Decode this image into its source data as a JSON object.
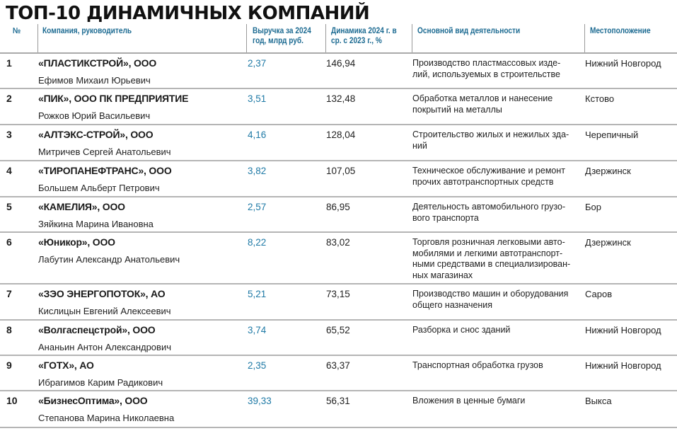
{
  "title": "ТОП-10 ДИНАМИЧНЫХ КОМПАНИЙ",
  "columns": {
    "num": "№",
    "company": "Компания, руководитель",
    "revenue_l1": "Выручка за 2024",
    "revenue_l2": "год, млрд руб.",
    "dynamics_l1": "Динамика 2024 г. в",
    "dynamics_l2": "ср. с 2023 г., %",
    "activity": "Основной вид деятельности",
    "location": "Местоположение"
  },
  "colors": {
    "accent": "#1d6b92",
    "revenue": "#1f7aa6",
    "divider": "#b5b5b5"
  },
  "rows": [
    {
      "num": "1",
      "company": "«ПЛАСТИКСТРОЙ», ООО",
      "head": "Ефимов Михаил Юрьевич",
      "revenue": "2,37",
      "dynamics": "146,94",
      "activity_l1": "Производство пластмассовых изде-",
      "activity_l2": "лий, используемых в строительстве",
      "activity_l3": "",
      "activity_l4": "",
      "location": "Нижний Новгород"
    },
    {
      "num": "2",
      "company": "«ПИК», ООО ПК ПРЕДПРИЯТИЕ",
      "head": "Рожков Юрий Васильевич",
      "revenue": "3,51",
      "dynamics": "132,48",
      "activity_l1": "Обработка металлов и нанесение",
      "activity_l2": "покрытий на металлы",
      "activity_l3": "",
      "activity_l4": "",
      "location": "Кстово"
    },
    {
      "num": "3",
      "company": "«АЛТЭКС-СТРОЙ», ООО",
      "head": "Митричев Сергей Анатольевич",
      "revenue": "4,16",
      "dynamics": "128,04",
      "activity_l1": "Строительство жилых и нежилых зда-",
      "activity_l2": "ний",
      "activity_l3": "",
      "activity_l4": "",
      "location": "Черепичный"
    },
    {
      "num": "4",
      "company": "«ТИРОПАНЕФТРАНС», ООО",
      "head": "Большем Альберт Петрович",
      "revenue": "3,82",
      "dynamics": "107,05",
      "activity_l1": "Техническое обслуживание и ремонт",
      "activity_l2": "прочих автотранспортных средств",
      "activity_l3": "",
      "activity_l4": "",
      "location": "Дзержинск"
    },
    {
      "num": "5",
      "company": "«КАМЕЛИЯ», ООО",
      "head": "Зяйкина Марина Ивановна",
      "revenue": "2,57",
      "dynamics": "86,95",
      "activity_l1": "Деятельность автомобильного грузо-",
      "activity_l2": "вого транспорта",
      "activity_l3": "",
      "activity_l4": "",
      "location": "Бор"
    },
    {
      "num": "6",
      "company": "«Юникор», ООО",
      "head": "Лабутин Александр Анатольевич",
      "revenue": "8,22",
      "dynamics": "83,02",
      "activity_l1": "Торговля розничная легковыми авто-",
      "activity_l2": "мобилями и легкими автотранспорт-",
      "activity_l3": "ными средствами в специализирован-",
      "activity_l4": "ных магазинах",
      "location": "Дзержинск"
    },
    {
      "num": "7",
      "company": "«ЗЭО ЭНЕРГОПОТОК», АО",
      "head": "Кислицын Евгений Алексеевич",
      "revenue": "5,21",
      "dynamics": "73,15",
      "activity_l1": "Производство машин и оборудования",
      "activity_l2": "общего назначения",
      "activity_l3": "",
      "activity_l4": "",
      "location": "Саров"
    },
    {
      "num": "8",
      "company": "«Волгаспецстрой», ООО",
      "head": "Ананьин Антон Александрович",
      "revenue": "3,74",
      "dynamics": "65,52",
      "activity_l1": "Разборка и снос зданий",
      "activity_l2": "",
      "activity_l3": "",
      "activity_l4": "",
      "location": "Нижний Новгород"
    },
    {
      "num": "9",
      "company": "«ГОТХ», АО",
      "head": "Ибрагимов Карим Радикович",
      "revenue": "2,35",
      "dynamics": "63,37",
      "activity_l1": "Транспортная обработка грузов",
      "activity_l2": "",
      "activity_l3": "",
      "activity_l4": "",
      "location": "Нижний Новгород"
    },
    {
      "num": "10",
      "company": "«БизнесОптима», ООО",
      "head": "Степанова Марина Николаевна",
      "revenue": "39,33",
      "dynamics": "56,31",
      "activity_l1": "Вложения в ценные бумаги",
      "activity_l2": "",
      "activity_l3": "",
      "activity_l4": "",
      "location": "Выкса"
    }
  ]
}
